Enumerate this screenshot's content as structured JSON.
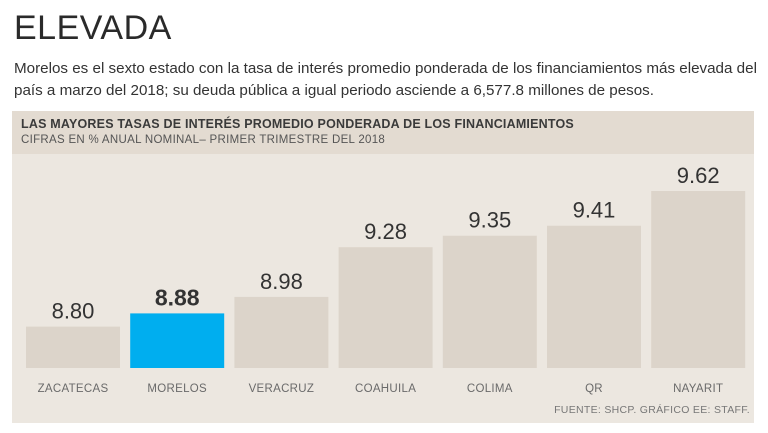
{
  "headline": "ELEVADA",
  "dek": "Morelos es el sexto estado con la tasa de interés promedio ponderada de los financiamientos más elevada del país a marzo del 2018; su deuda pública a igual periodo asciende a 6,577.8 millones de pesos.",
  "colors": {
    "bar": "#dcd4ca",
    "highlight": "#00aeef",
    "panel": "#ece7e0"
  },
  "source": "FUENTE: SHCP. GRÁFICO EE: STAFF.",
  "chart_data": {
    "type": "bar",
    "title": "LAS MAYORES TASAS DE INTERÉS PROMEDIO PONDERADA DE LOS FINANCIAMIENTOS",
    "subtitle": "CIFRAS EN % ANUAL NOMINAL– PRIMER TRIMESTRE DEL 2018",
    "categories": [
      "ZACATECAS",
      "MORELOS",
      "VERACRUZ",
      "COAHUILA",
      "COLIMA",
      "QR",
      "NAYARIT"
    ],
    "values": [
      8.8,
      8.88,
      8.98,
      9.28,
      9.35,
      9.41,
      9.62
    ],
    "value_labels": [
      "8.80",
      "8.88",
      "8.98",
      "9.28",
      "9.35",
      "9.41",
      "9.62"
    ],
    "highlight": "MORELOS",
    "xlabel": "",
    "ylabel": "",
    "ylim": [
      8.55,
      9.62
    ],
    "grid": false
  }
}
